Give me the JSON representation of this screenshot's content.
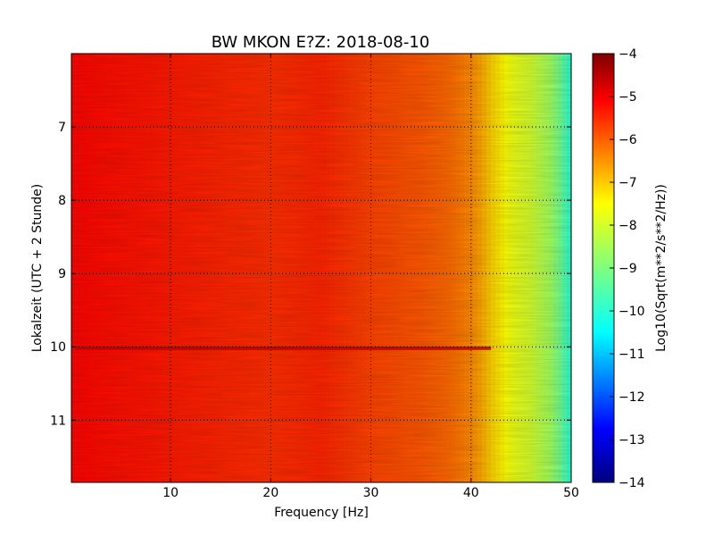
{
  "chart_data": {
    "type": "heatmap",
    "title": "BW MKON E?Z: 2018-08-10",
    "xlabel": "Frequency [Hz]",
    "ylabel": "Lokalzeit (UTC + 2 Stunde)",
    "xlim": [
      0.1,
      50
    ],
    "ylim": [
      6.0,
      11.85
    ],
    "y_inverted": true,
    "x_ticks": [
      10,
      20,
      30,
      40,
      50
    ],
    "y_ticks": [
      7,
      8,
      9,
      10,
      11
    ],
    "grid": true,
    "grid_style": "dotted",
    "colormap": "jet",
    "colorbar": {
      "label": "Log10(Sqrt(m**2/s**2/Hz))",
      "range": [
        -14,
        -4
      ],
      "ticks": [
        -4,
        -5,
        -6,
        -7,
        -8,
        -9,
        -10,
        -11,
        -12,
        -13,
        -14
      ]
    },
    "spectral_profile": [
      {
        "freq": 0.1,
        "value": -5.3
      },
      {
        "freq": 5,
        "value": -5.4
      },
      {
        "freq": 10,
        "value": -5.5
      },
      {
        "freq": 15,
        "value": -5.6
      },
      {
        "freq": 20,
        "value": -5.7
      },
      {
        "freq": 25,
        "value": -5.6
      },
      {
        "freq": 30,
        "value": -5.9
      },
      {
        "freq": 35,
        "value": -6.1
      },
      {
        "freq": 38,
        "value": -6.3
      },
      {
        "freq": 40,
        "value": -6.6
      },
      {
        "freq": 41,
        "value": -6.9
      },
      {
        "freq": 42,
        "value": -7.3
      },
      {
        "freq": 43,
        "value": -7.6
      },
      {
        "freq": 44,
        "value": -7.9
      },
      {
        "freq": 46,
        "value": -8.2
      },
      {
        "freq": 48,
        "value": -8.7
      },
      {
        "freq": 49,
        "value": -9.2
      },
      {
        "freq": 50,
        "value": -9.9
      }
    ],
    "events": [
      {
        "time": 10.02,
        "freq_range": [
          0.5,
          42
        ],
        "value": -4.6
      }
    ]
  }
}
